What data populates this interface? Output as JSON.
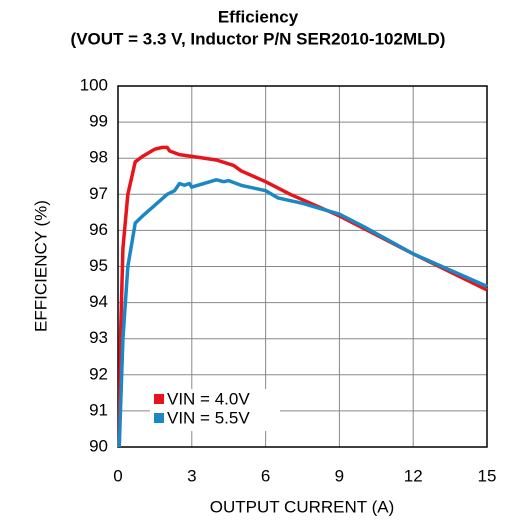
{
  "chart_data": {
    "type": "line",
    "title": "Efficiency",
    "subtitle": "(VOUT = 3.3 V, Inductor P/N SER2010-102MLD)",
    "x_label": "OUTPUT CURRENT (A)",
    "y_label": "EFFICIENCY (%)",
    "xlim": [
      0,
      15
    ],
    "xticks": [
      0,
      3,
      6,
      9,
      12,
      15
    ],
    "ylim": [
      90,
      100
    ],
    "yticks": [
      90,
      91,
      92,
      93,
      94,
      95,
      96,
      97,
      98,
      99,
      100
    ],
    "grid": true,
    "legend": "lower left",
    "series": [
      {
        "name": "VIN = 4.0V",
        "color": "#e8141c",
        "x": [
          0.05,
          0.1,
          0.2,
          0.4,
          0.7,
          1.0,
          1.5,
          1.8,
          2.0,
          2.1,
          2.5,
          3.0,
          4.0,
          4.7,
          5.0,
          6.0,
          7.0,
          9.0,
          12.0,
          15.0
        ],
        "values": [
          90,
          93,
          95.5,
          97,
          97.9,
          98.05,
          98.25,
          98.3,
          98.3,
          98.2,
          98.1,
          98.05,
          97.95,
          97.8,
          97.65,
          97.35,
          97.0,
          96.4,
          95.35,
          94.35
        ]
      },
      {
        "name": "VIN = 5.5V",
        "color": "#1b87c5",
        "x": [
          0.05,
          0.2,
          0.4,
          0.7,
          1.0,
          1.5,
          2.0,
          2.3,
          2.5,
          2.7,
          2.9,
          3.0,
          3.5,
          4.0,
          4.3,
          4.5,
          5.0,
          6.0,
          6.5,
          7.5,
          9.0,
          10.0,
          12.0,
          15.0
        ],
        "values": [
          90,
          93,
          95,
          96.2,
          96.4,
          96.7,
          97.0,
          97.1,
          97.3,
          97.25,
          97.3,
          97.2,
          97.3,
          97.4,
          97.35,
          97.38,
          97.25,
          97.1,
          96.9,
          96.75,
          96.45,
          96.1,
          95.35,
          94.45
        ]
      }
    ]
  }
}
